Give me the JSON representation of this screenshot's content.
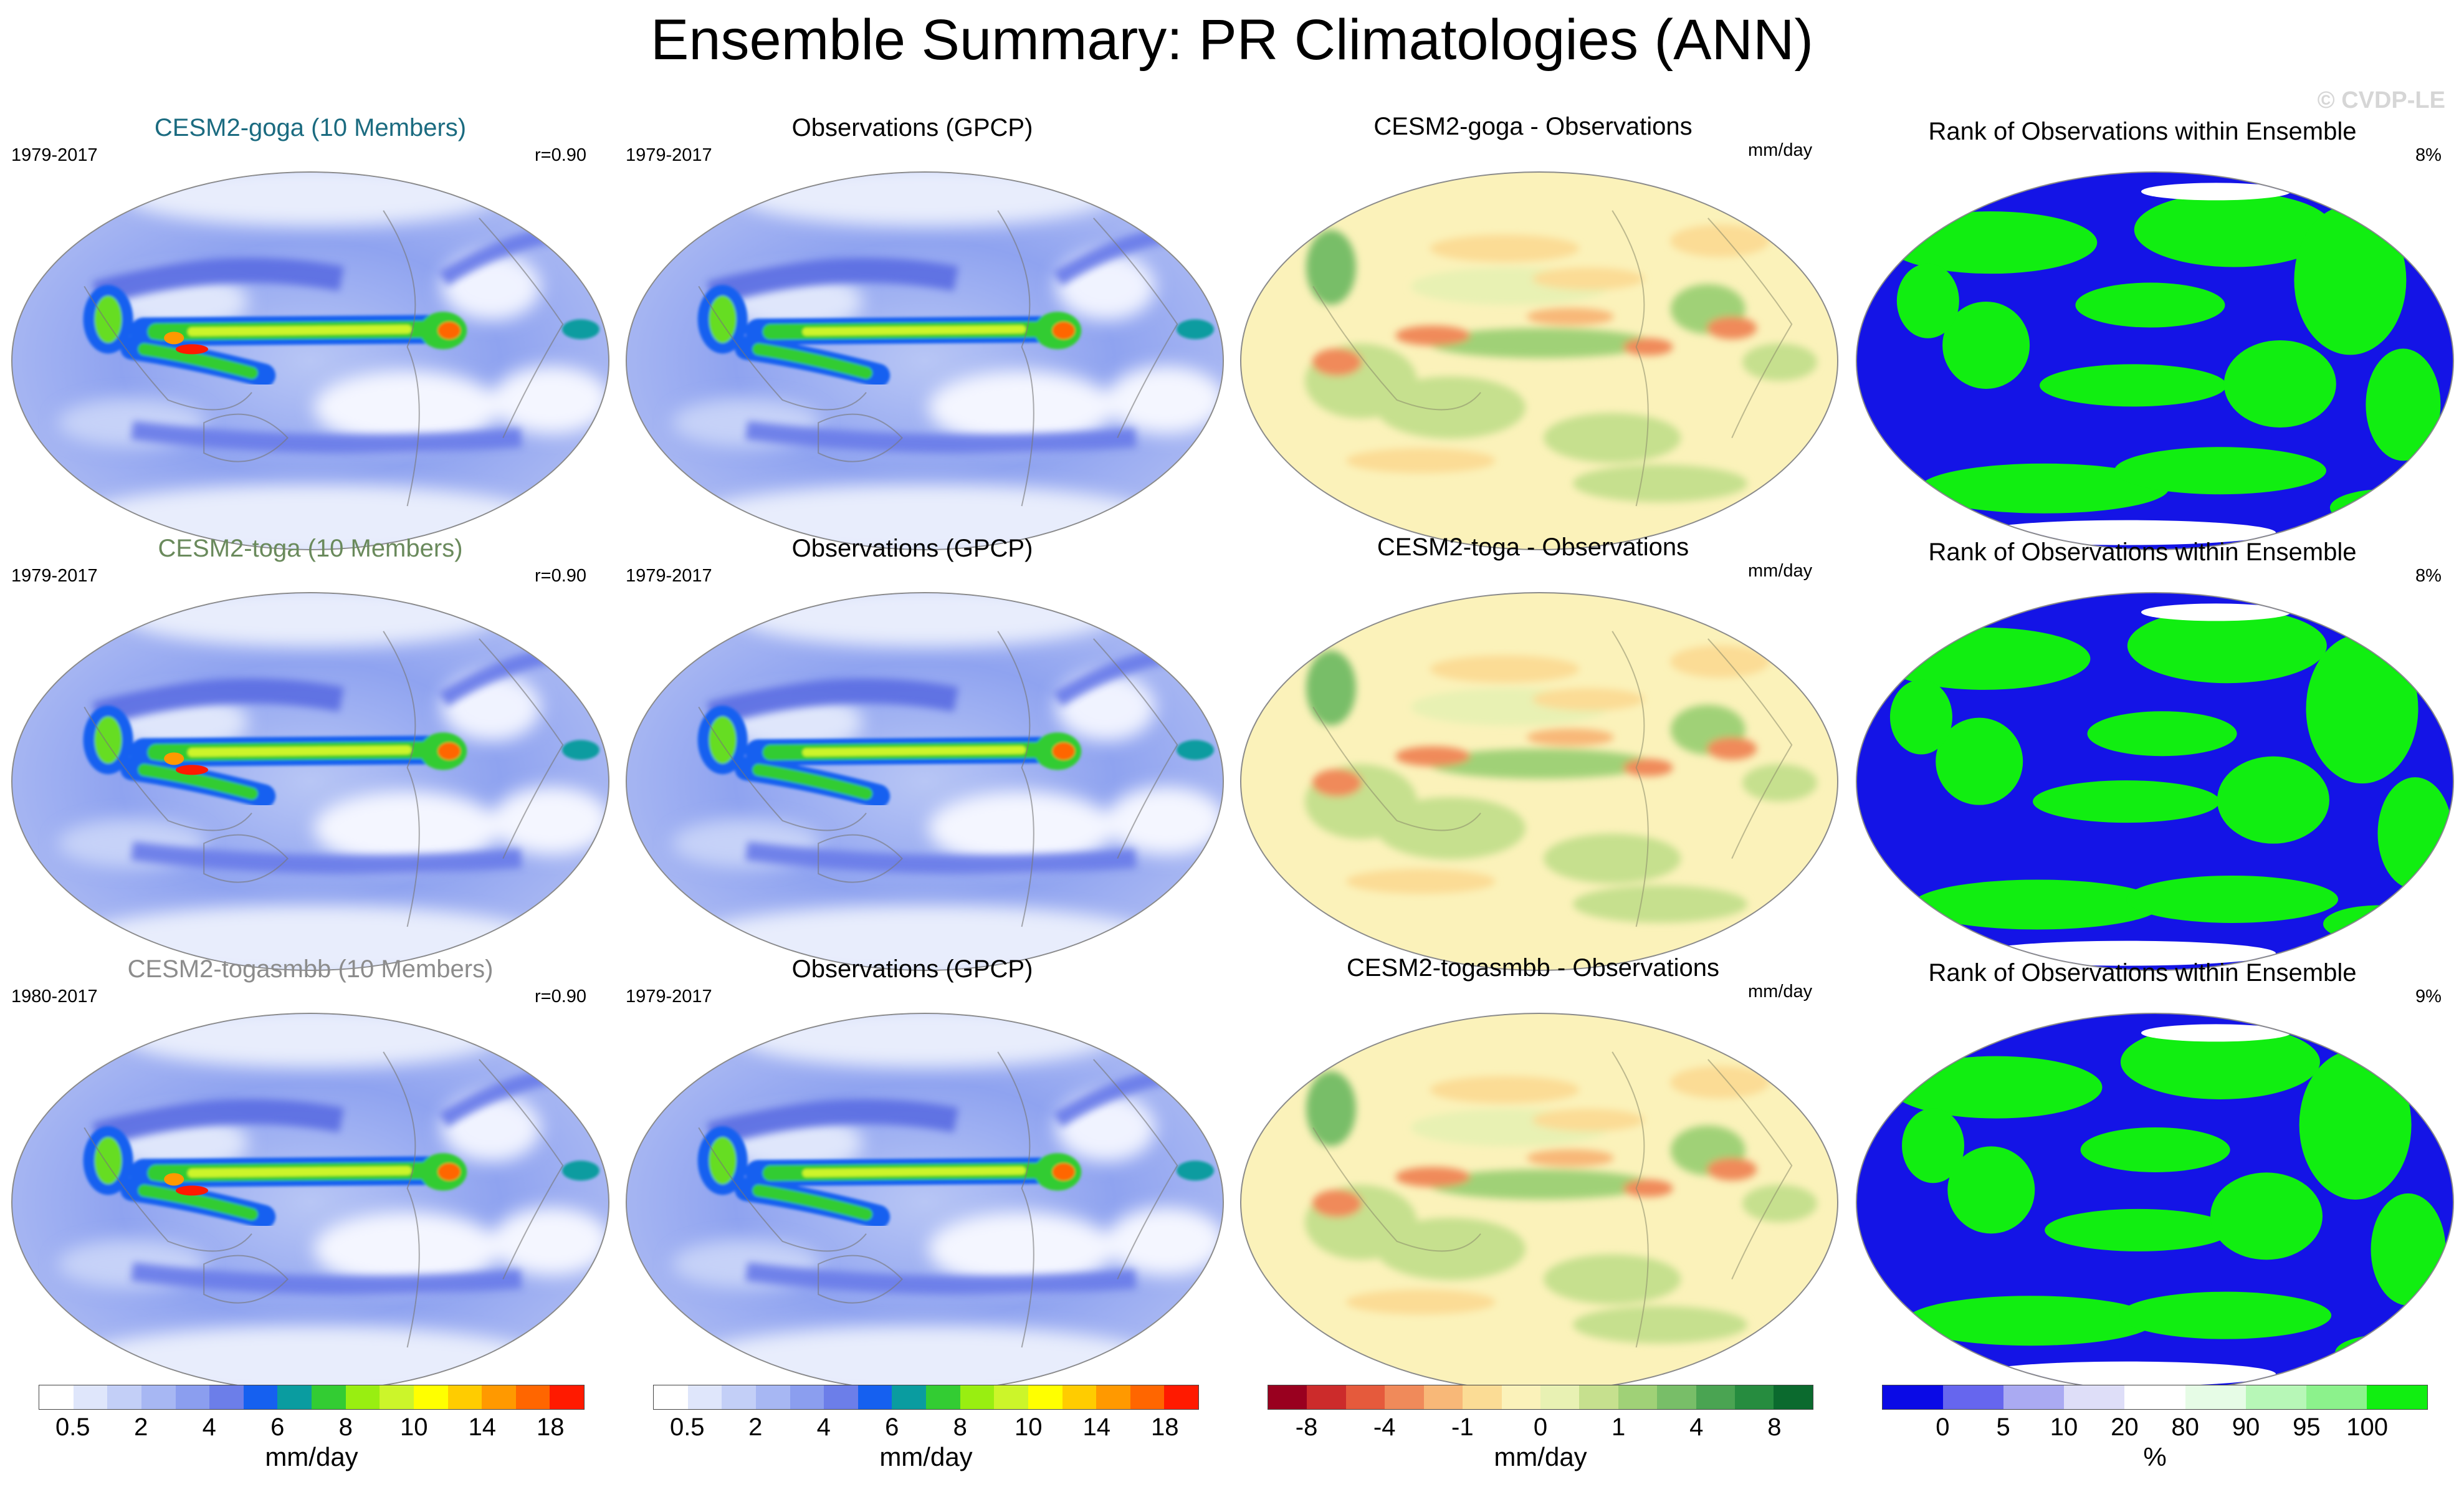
{
  "title": "Ensemble Summary: PR Climatologies (ANN)",
  "watermark": "© CVDP-LE",
  "rows": [
    {
      "ens": {
        "title": "CESM2-goga (10 Members)",
        "years": "1979-2017",
        "corr": "r=0.90"
      },
      "obs": {
        "title": "Observations (GPCP)",
        "years": "1979-2017"
      },
      "diff": {
        "title": "CESM2-goga - Observations",
        "units": "mm/day"
      },
      "rank": {
        "title": "Rank of Observations within Ensemble",
        "pct": "8%"
      }
    },
    {
      "ens": {
        "title": "CESM2-toga (10 Members)",
        "years": "1979-2017",
        "corr": "r=0.90"
      },
      "obs": {
        "title": "Observations (GPCP)",
        "years": "1979-2017"
      },
      "diff": {
        "title": "CESM2-toga - Observations",
        "units": "mm/day"
      },
      "rank": {
        "title": "Rank of Observations within Ensemble",
        "pct": "8%"
      }
    },
    {
      "ens": {
        "title": "CESM2-togasmbb (10 Members)",
        "years": "1980-2017",
        "corr": "r=0.90"
      },
      "obs": {
        "title": "Observations (GPCP)",
        "years": "1979-2017"
      },
      "diff": {
        "title": "CESM2-togasmbb - Observations",
        "units": "mm/day"
      },
      "rank": {
        "title": "Rank of Observations within Ensemble",
        "pct": "9%"
      }
    }
  ],
  "colorbars": {
    "precip": {
      "units": "mm/day",
      "colors": [
        "#ffffff",
        "#dfe6fb",
        "#c3cff7",
        "#a7b7f3",
        "#8b9eef",
        "#6c7ee9",
        "#1560f0",
        "#0a9ca0",
        "#33cc33",
        "#99ee11",
        "#ccf52a",
        "#ffff00",
        "#ffcc00",
        "#ff9900",
        "#ff6600",
        "#ff1a00"
      ],
      "labels": [
        "0.5",
        "2",
        "4",
        "6",
        "8",
        "10",
        "14",
        "18"
      ]
    },
    "diff": {
      "units": "mm/day",
      "colors": [
        "#99001f",
        "#cc2b2b",
        "#e55a3c",
        "#f08a5a",
        "#f8b878",
        "#fbdc95",
        "#fbf2ba",
        "#e8f1b3",
        "#c6e08e",
        "#a0d177",
        "#78be68",
        "#4aa452",
        "#268c3f",
        "#0b6a2e"
      ],
      "labels": [
        "-8",
        "-4",
        "-1",
        "0",
        "1",
        "4",
        "8"
      ]
    },
    "rank": {
      "units": "%",
      "colors": [
        "#0a0ae6",
        "#6666ee",
        "#aaaaf2",
        "#dedef8",
        "#ffffff",
        "#e6fce6",
        "#b7f7b7",
        "#8cf28c",
        "#11ee11"
      ],
      "labels": [
        "0",
        "5",
        "10",
        "20",
        "80",
        "90",
        "95",
        "100"
      ]
    }
  }
}
